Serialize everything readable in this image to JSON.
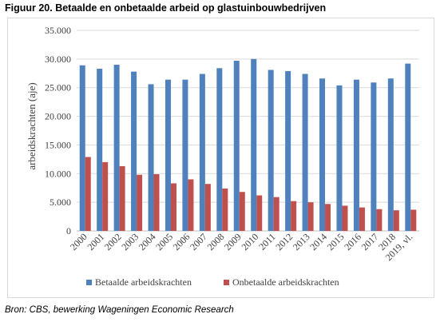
{
  "figure": {
    "title": "Figuur 20. Betaalde en onbetaalde arbeid op glastuinbouwbedrijven",
    "source": "Bron: CBS, bewerking Wageningen Economic Research"
  },
  "chart_data": {
    "type": "bar",
    "title": "",
    "xlabel": "",
    "ylabel": "arbeidskrachten (aje)",
    "ylim": [
      0,
      35000
    ],
    "yticks": [
      0,
      5000,
      10000,
      15000,
      20000,
      25000,
      30000,
      35000
    ],
    "ytick_labels": [
      "0",
      "5.000",
      "10.000",
      "15.000",
      "20.000",
      "25.000",
      "30.000",
      "35.000"
    ],
    "grid": true,
    "legend_position": "bottom",
    "categories": [
      "2000",
      "2001",
      "2002",
      "2003",
      "2004",
      "2005",
      "2006",
      "2007",
      "2008",
      "2009",
      "2010",
      "2011",
      "2012",
      "2013",
      "2014",
      "2015",
      "2016",
      "2017",
      "2018",
      "2019, vl."
    ],
    "series": [
      {
        "name": "Betaalde arbeidskrachten",
        "color": "#4f81bd",
        "values": [
          28900,
          28300,
          29000,
          27800,
          25600,
          26400,
          26400,
          27400,
          28400,
          29700,
          30000,
          28100,
          27900,
          27400,
          26600,
          25400,
          26400,
          25900,
          26600,
          29200
        ]
      },
      {
        "name": "Onbetaalde arbeidskrachten",
        "color": "#c0504d",
        "values": [
          12900,
          12000,
          11300,
          9800,
          9900,
          8300,
          9000,
          8200,
          7400,
          6800,
          6200,
          5900,
          5200,
          5000,
          4700,
          4400,
          4100,
          3800,
          3600,
          3700
        ]
      }
    ]
  }
}
